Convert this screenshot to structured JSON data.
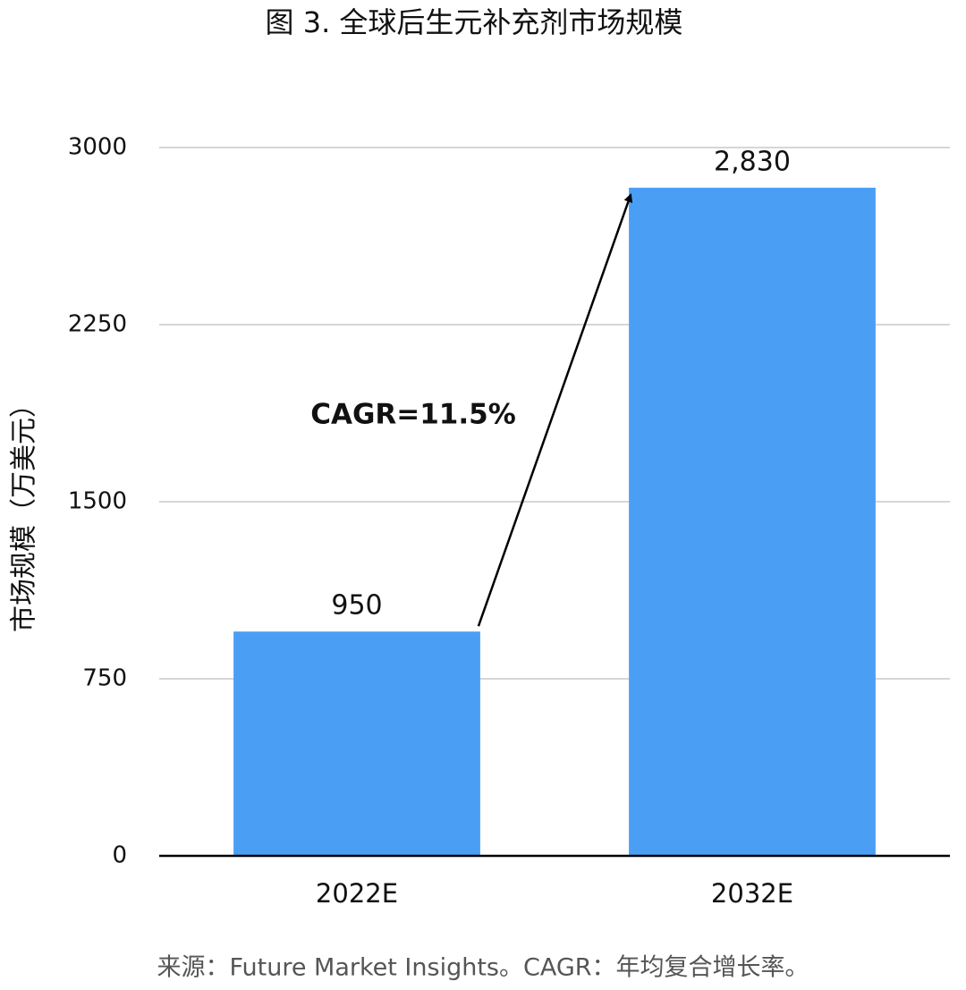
{
  "chart_data": {
    "type": "bar",
    "title": "图 3. 全球后生元补充剂市场规模",
    "y_label": "市场规模（万美元）",
    "categories": [
      "2022E",
      "2032E"
    ],
    "values": [
      950,
      2830
    ],
    "value_labels": [
      "950",
      "2,830"
    ],
    "color": "#4a9ff5",
    "ylim": [
      0,
      3000
    ],
    "yticks": [
      0,
      750,
      1500,
      2250,
      3000
    ],
    "grid": true,
    "annotation": "CAGR=11.5%",
    "source": "来源：Future Market Insights。CAGR：年均复合增长率。"
  }
}
